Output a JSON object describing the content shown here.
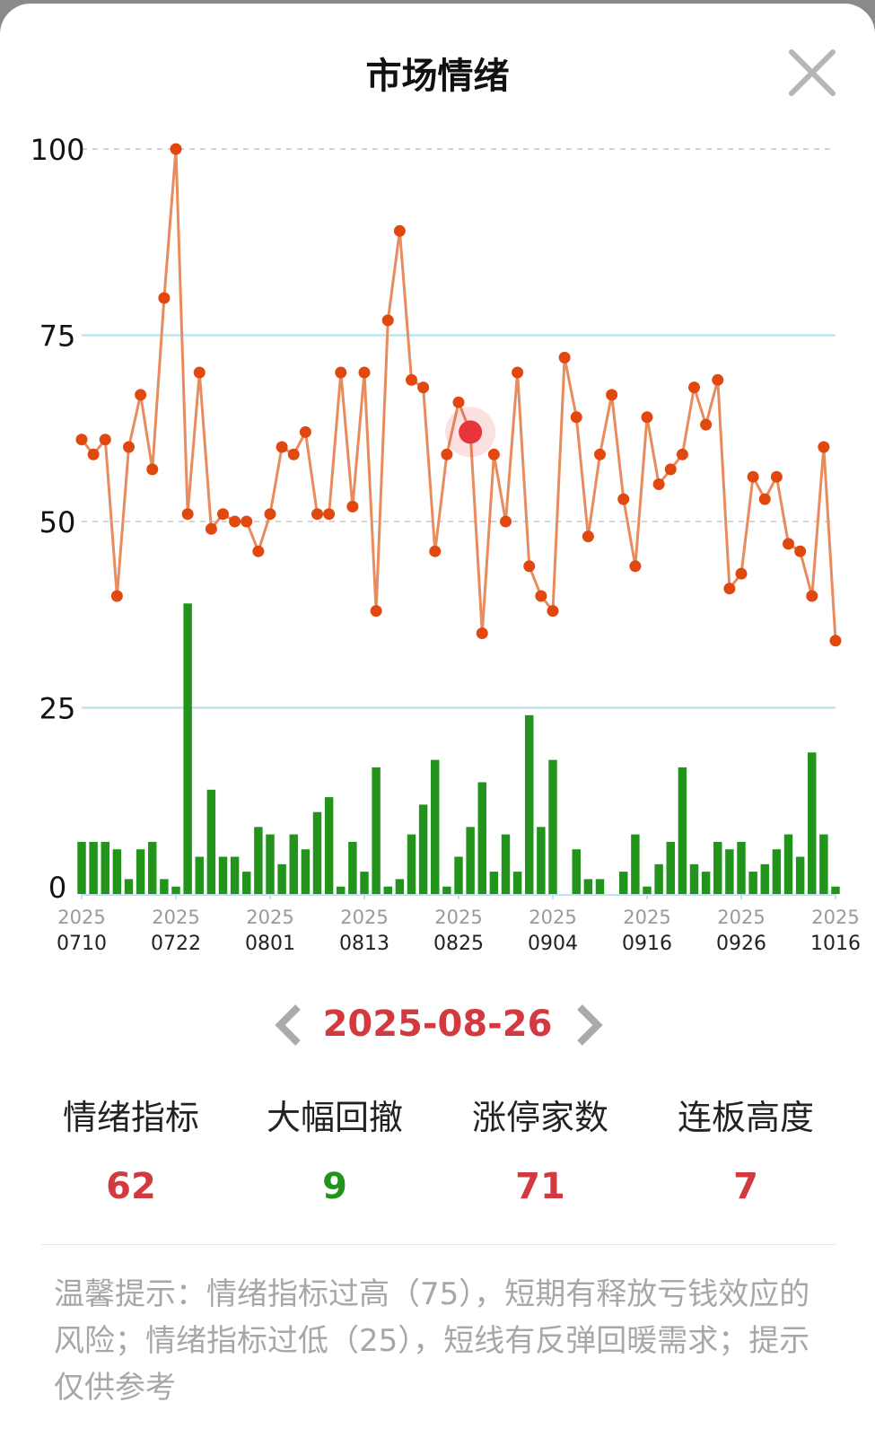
{
  "header": {
    "title": "市场情绪",
    "close_icon": "close-icon"
  },
  "chart_data": {
    "type": "line",
    "y_ticks": [
      "100",
      "75",
      "50",
      "25",
      "0"
    ],
    "ylim": [
      0,
      100
    ],
    "x_ticks": [
      {
        "year": "2025",
        "date": "0710"
      },
      {
        "year": "2025",
        "date": "0722"
      },
      {
        "year": "2025",
        "date": "0801"
      },
      {
        "year": "2025",
        "date": "0813"
      },
      {
        "year": "2025",
        "date": "0825"
      },
      {
        "year": "2025",
        "date": "0904"
      },
      {
        "year": "2025",
        "date": "0916"
      },
      {
        "year": "2025",
        "date": "0926"
      },
      {
        "year": "2025",
        "date": "1016"
      }
    ],
    "line_values": [
      61,
      59,
      61,
      40,
      60,
      67,
      57,
      80,
      100,
      51,
      70,
      49,
      51,
      50,
      50,
      46,
      51,
      60,
      59,
      62,
      51,
      51,
      70,
      52,
      70,
      38,
      77,
      89,
      69,
      68,
      46,
      59,
      66,
      62,
      35,
      59,
      50,
      70,
      44,
      40,
      38,
      72,
      64,
      48,
      59,
      67,
      53,
      44,
      64,
      55,
      57,
      59,
      68,
      63,
      69,
      41,
      43,
      56,
      53,
      56,
      47,
      46,
      40,
      60,
      34
    ],
    "bar_values": [
      7,
      7,
      7,
      6,
      2,
      6,
      7,
      2,
      1,
      39,
      5,
      14,
      5,
      5,
      3,
      9,
      8,
      4,
      8,
      6,
      11,
      13,
      1,
      7,
      3,
      17,
      1,
      2,
      8,
      12,
      18,
      1,
      5,
      9,
      15,
      3,
      8,
      3,
      24,
      9,
      18,
      0,
      6,
      2,
      2,
      0,
      3,
      8,
      1,
      4,
      7,
      17,
      4,
      3,
      7,
      6,
      7,
      3,
      4,
      6,
      8,
      5,
      19,
      8,
      1
    ],
    "selected_index": 33,
    "line_color": "#e88c5e",
    "point_color": "#e0480f",
    "bar_color": "#22941c",
    "selected_color": "#e8343a",
    "threshold_color": "#bfe3ef",
    "grid": "dashed"
  },
  "navigator": {
    "date": "2025-08-26",
    "prev_icon": "chevron-left-icon",
    "next_icon": "chevron-right-icon"
  },
  "stats": [
    {
      "label": "情绪指标",
      "value": "62",
      "color": "#d23a3f"
    },
    {
      "label": "大幅回撤",
      "value": "9",
      "color": "#22941c"
    },
    {
      "label": "涨停家数",
      "value": "71",
      "color": "#d23a3f"
    },
    {
      "label": "连板高度",
      "value": "7",
      "color": "#d23a3f"
    }
  ],
  "tip": "温馨提示：情绪指标过高（75），短期有释放亏钱效应的风险；情绪指标过低（25），短线有反弹回暖需求；提示仅供参考"
}
